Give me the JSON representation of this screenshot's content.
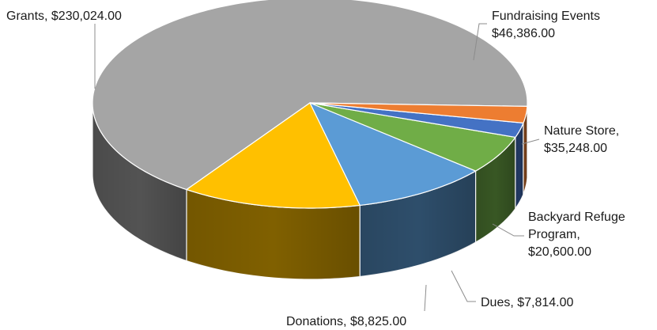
{
  "chart_data": {
    "type": "pie",
    "style": "3d",
    "title": "",
    "legend": "none",
    "slices": [
      {
        "label": "Grants",
        "value": 230024.0,
        "value_text": "$230,024.00",
        "color": "#a5a5a5",
        "label_lines": [
          "Grants, $230,024.00"
        ]
      },
      {
        "label": "Fundraising Events",
        "value": 46386.0,
        "value_text": "$46,386.00",
        "color": "#ffc000",
        "label_lines": [
          "Fundraising Events",
          "$46,386.00"
        ]
      },
      {
        "label": "Nature Store",
        "value": 35248.0,
        "value_text": "$35,248.00",
        "color": "#5b9bd5",
        "label_lines": [
          "Nature Store,",
          "$35,248.00"
        ]
      },
      {
        "label": "Backyard Refuge Program",
        "value": 20600.0,
        "value_text": "$20,600.00",
        "color": "#70ad47",
        "label_lines": [
          "Backyard Refuge",
          "Program,",
          "$20,600.00"
        ]
      },
      {
        "label": "Dues",
        "value": 7814.0,
        "value_text": "$7,814.00",
        "color": "#4472c4",
        "label_lines": [
          "Dues, $7,814.00"
        ]
      },
      {
        "label": "Donations",
        "value": 8825.0,
        "value_text": "$8,825.00",
        "color": "#ed7d31",
        "label_lines": [
          "Donations, $8,825.00"
        ]
      }
    ]
  }
}
